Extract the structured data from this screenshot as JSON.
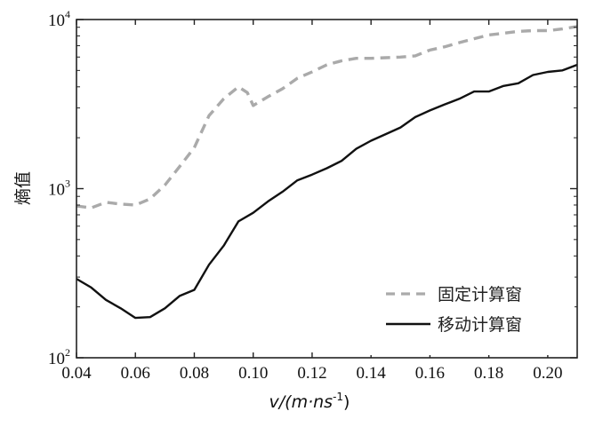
{
  "chart_data": {
    "type": "line",
    "xlabel": "v/(m·ns",
    "xlabel_sup": "-1",
    "xlabel_close": ")",
    "ylabel": "熵值",
    "xlim": [
      0.04,
      0.21
    ],
    "ylim": [
      100,
      10000
    ],
    "yscale": "log",
    "xticks": [
      0.04,
      0.06,
      0.08,
      0.1,
      0.12,
      0.14,
      0.16,
      0.18,
      0.2
    ],
    "xtick_labels": [
      "0.04",
      "0.06",
      "0.08",
      "0.10",
      "0.12",
      "0.14",
      "0.16",
      "0.18",
      "0.20"
    ],
    "yticks": [
      {
        "value": 100,
        "base": "10",
        "exp": "2"
      },
      {
        "value": 1000,
        "base": "10",
        "exp": "3"
      },
      {
        "value": 10000,
        "base": "10",
        "exp": "4"
      }
    ],
    "legend_position": "bottom-right",
    "series": [
      {
        "name": "固定计算窗",
        "style": "dashed",
        "color": "#aaaaaa",
        "x": [
          0.04,
          0.045,
          0.05,
          0.055,
          0.06,
          0.065,
          0.07,
          0.075,
          0.08,
          0.085,
          0.09,
          0.095,
          0.098,
          0.1,
          0.105,
          0.11,
          0.115,
          0.12,
          0.125,
          0.13,
          0.135,
          0.14,
          0.145,
          0.15,
          0.155,
          0.16,
          0.165,
          0.17,
          0.175,
          0.18,
          0.185,
          0.19,
          0.195,
          0.2,
          0.205,
          0.21
        ],
        "y": [
          790,
          770,
          830,
          810,
          800,
          870,
          1050,
          1350,
          1750,
          2700,
          3400,
          4000,
          3700,
          3100,
          3500,
          3900,
          4500,
          4900,
          5400,
          5700,
          5900,
          5900,
          5950,
          6000,
          6100,
          6600,
          6900,
          7300,
          7700,
          8100,
          8300,
          8500,
          8600,
          8600,
          8800,
          9100
        ]
      },
      {
        "name": "移动计算窗",
        "style": "solid",
        "color": "#111111",
        "x": [
          0.04,
          0.045,
          0.05,
          0.055,
          0.06,
          0.065,
          0.07,
          0.075,
          0.08,
          0.085,
          0.09,
          0.095,
          0.1,
          0.105,
          0.11,
          0.115,
          0.12,
          0.125,
          0.13,
          0.135,
          0.14,
          0.145,
          0.15,
          0.155,
          0.16,
          0.165,
          0.17,
          0.175,
          0.18,
          0.185,
          0.19,
          0.195,
          0.2,
          0.205,
          0.21
        ],
        "y": [
          293,
          260,
          220,
          196,
          172,
          174,
          196,
          232,
          252,
          355,
          460,
          640,
          720,
          840,
          960,
          1120,
          1210,
          1320,
          1460,
          1720,
          1920,
          2100,
          2300,
          2650,
          2900,
          3150,
          3400,
          3750,
          3750,
          4050,
          4200,
          4700,
          4900,
          5000,
          5400
        ]
      }
    ]
  }
}
